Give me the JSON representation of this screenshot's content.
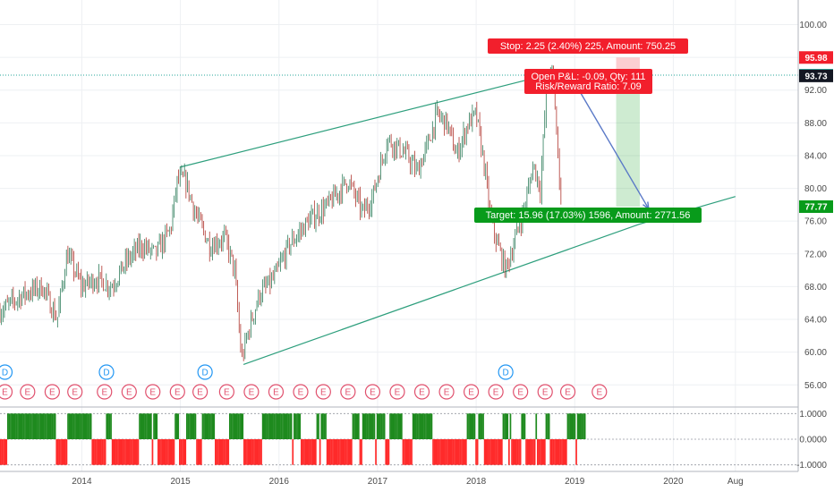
{
  "chart_data": {
    "type": "line",
    "title": "",
    "xlabel": "",
    "ylabel": "",
    "x_ticks": [
      "2014",
      "2015",
      "2016",
      "2017",
      "2018",
      "2019",
      "2020",
      "Aug"
    ],
    "y_ticks": [
      "100.00",
      "96.00",
      "92.00",
      "88.00",
      "84.00",
      "80.00",
      "76.00",
      "72.00",
      "68.00",
      "64.00",
      "60.00",
      "56.00"
    ],
    "ylim": [
      53.3,
      103.0
    ],
    "xlim": [
      2013.17,
      2021.63
    ],
    "grid": true,
    "series": [
      {
        "x": [
          2013.17,
          2013.4,
          2013.6,
          2013.75,
          2013.85,
          2014.0,
          2014.15,
          2014.3,
          2014.45,
          2014.6,
          2014.75,
          2014.9,
          2014.97,
          2015.05,
          2015.15,
          2015.3,
          2015.45,
          2015.55,
          2015.62,
          2015.7,
          2015.8,
          2015.95,
          2016.1,
          2016.3,
          2016.5,
          2016.7,
          2016.85,
          2016.95,
          2017.1,
          2017.2,
          2017.3,
          2017.4,
          2017.5,
          2017.6,
          2017.7,
          2017.8,
          2017.92,
          2018.0,
          2018.08,
          2018.15,
          2018.22,
          2018.3,
          2018.4,
          2018.5,
          2018.58,
          2018.65,
          2018.72,
          2018.78,
          2018.83,
          2018.86
        ],
        "values": [
          65,
          67,
          68,
          64,
          72,
          68,
          69,
          68,
          71,
          73,
          72,
          75,
          81,
          81,
          77,
          73,
          74,
          70,
          59,
          63,
          67,
          69,
          73,
          76,
          78,
          81,
          77,
          79,
          86,
          85,
          84,
          82,
          85,
          89,
          88,
          84,
          88,
          89,
          83,
          76,
          73,
          70,
          74,
          78,
          83,
          80,
          93,
          94,
          84,
          79
        ]
      }
    ],
    "price_lines": [
      {
        "label": "95.98",
        "value": 95.98,
        "color": "#f21f2c"
      },
      {
        "label": "93.82",
        "value": 93.82,
        "color": "#26a69a"
      },
      {
        "label": "93.73",
        "value": 93.73,
        "color": "#131722"
      },
      {
        "label": "77.77",
        "value": 77.77,
        "color": "#089b1b"
      }
    ],
    "channel": {
      "color": "#2e9f7d",
      "upper": [
        [
          2015.0,
          82.6
        ],
        [
          2018.8,
          94.1
        ]
      ],
      "lower": [
        [
          2015.64,
          58.5
        ],
        [
          2019.65,
          75.6
        ],
        [
          2020.63,
          79.0
        ]
      ]
    },
    "projection": {
      "color": "#5a79c7",
      "from": [
        2018.97,
        93.5
      ],
      "to": [
        2019.75,
        77.5
      ]
    },
    "position": {
      "x_start": 2019.42,
      "x_end": 2019.66,
      "entry": 93.73,
      "stop": 95.98,
      "target": 77.77
    },
    "labels": {
      "stop": "Stop: 2.25 (2.40%) 225, Amount: 750.25",
      "open_pnl": "Open P&L: -0.09, Qty: 111",
      "risk_reward": "Risk/Reward Ratio: 7.09",
      "target": "Target: 15.96 (17.03%) 1596, Amount: 2771.56"
    },
    "event_markers": {
      "dividend_label": "D",
      "earnings_label": "E",
      "dividends": [
        2013.22,
        2014.25,
        2015.25,
        2018.3
      ],
      "earnings": [
        2013.22,
        2013.45,
        2013.7,
        2013.93,
        2014.23,
        2014.48,
        2014.72,
        2014.97,
        2015.2,
        2015.47,
        2015.72,
        2015.97,
        2016.22,
        2016.45,
        2016.7,
        2016.95,
        2017.2,
        2017.45,
        2017.7,
        2017.95,
        2018.2,
        2018.45,
        2018.7,
        2018.93,
        2019.25
      ]
    },
    "oscillator": {
      "y_ticks": [
        "1.0000",
        "0.0000",
        "-1.0000"
      ],
      "ylim": [
        -1.15,
        1.15
      ],
      "x_range": [
        2013.17,
        2019.1
      ],
      "up_color": "#1e8a1e",
      "down_color": "#ff2a2a"
    }
  }
}
